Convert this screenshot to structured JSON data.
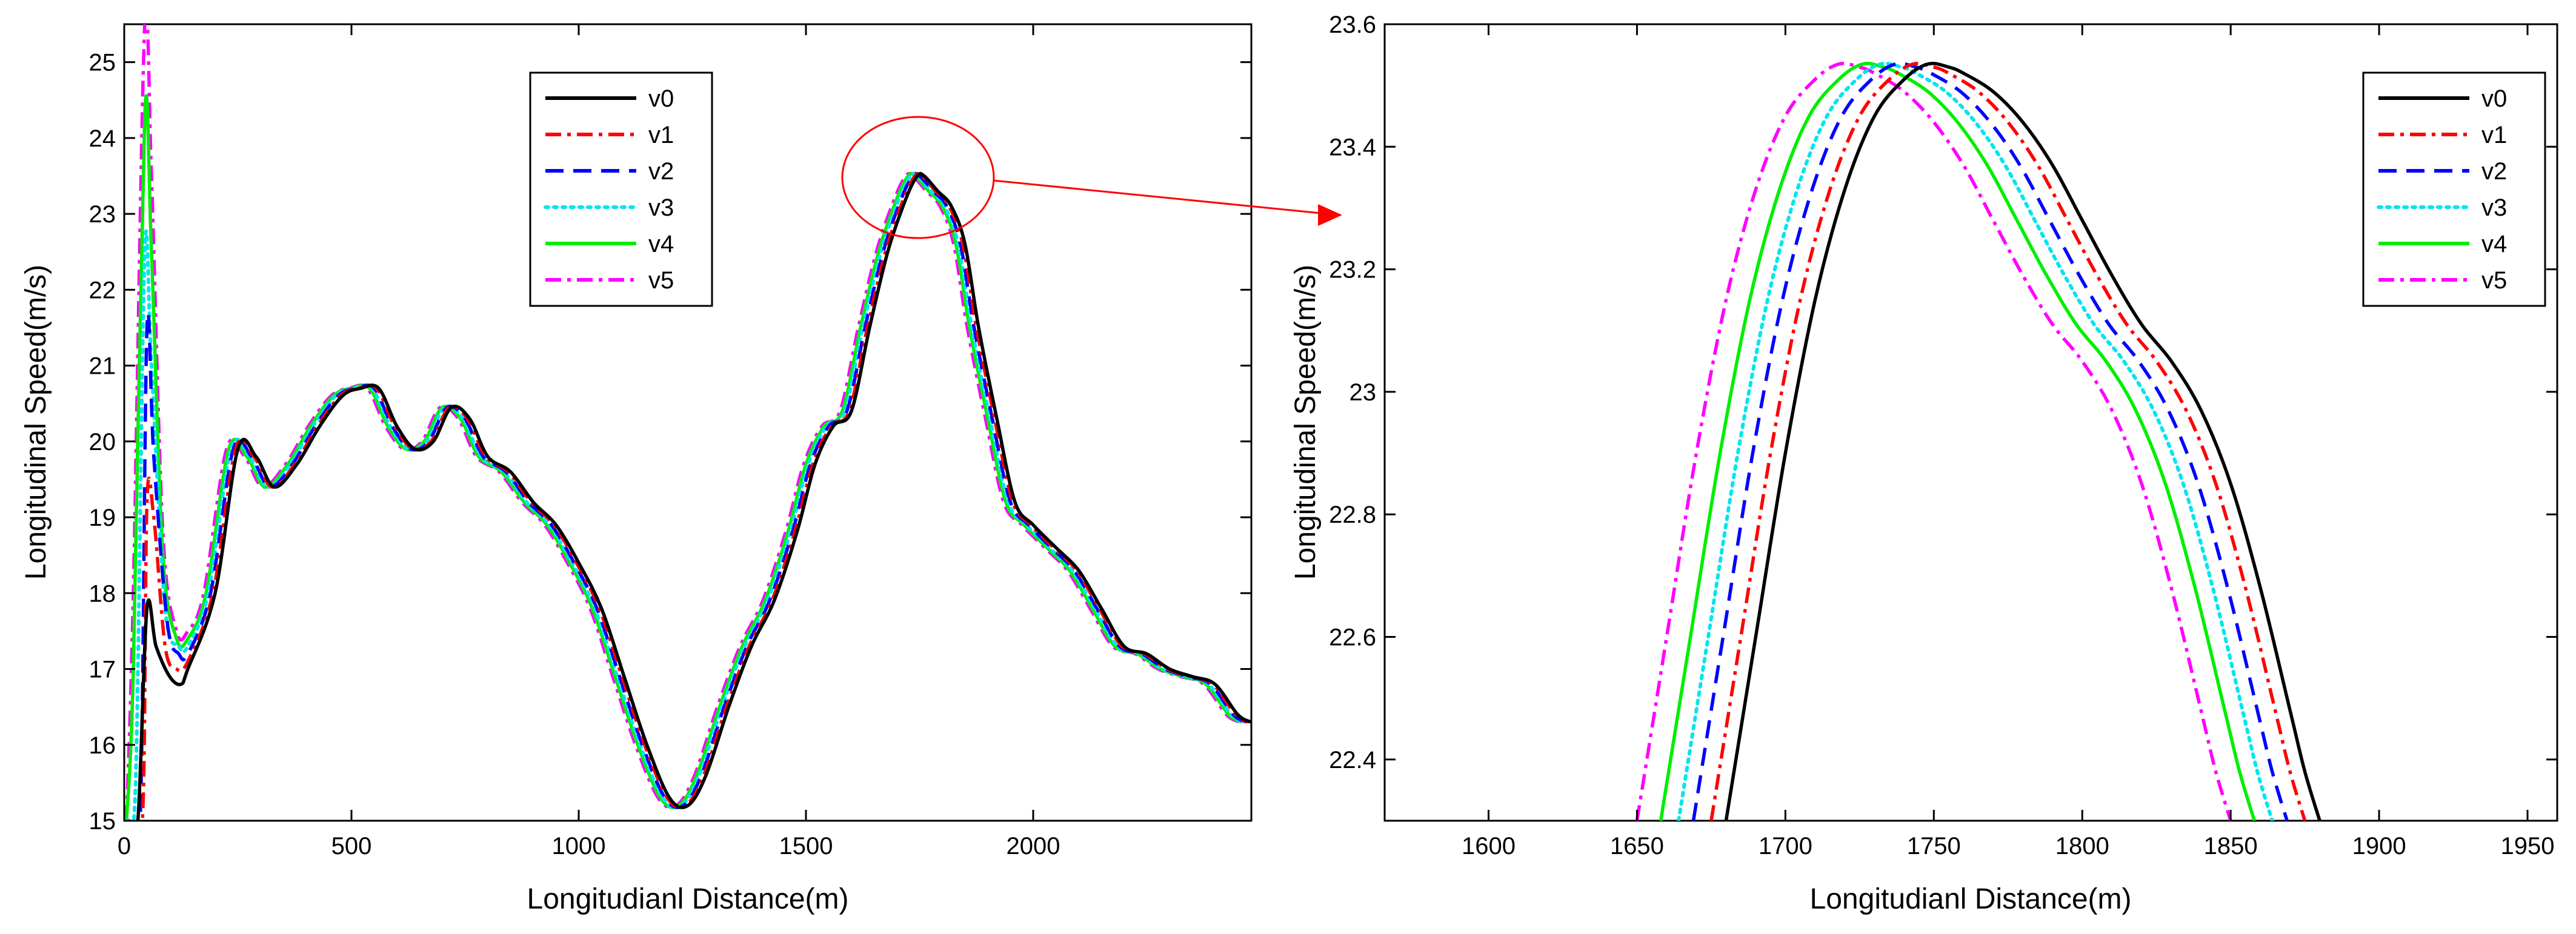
{
  "chart_data": [
    {
      "type": "line",
      "xlabel": "Longitudianl Distance(m)",
      "ylabel": "Longitudinal Speed(m/s)",
      "xlim": [
        0,
        2480
      ],
      "ylim": [
        15,
        25.5
      ],
      "xticks": [
        0,
        500,
        1000,
        1500,
        2000
      ],
      "yticks": [
        15,
        16,
        17,
        18,
        19,
        20,
        21,
        22,
        23,
        24,
        25
      ],
      "xtick_labels": [
        "0",
        "500",
        "1000",
        "1500",
        "2000"
      ],
      "ytick_labels": [
        "15",
        "16",
        "17",
        "18",
        "19",
        "20",
        "21",
        "22",
        "23",
        "24",
        "25"
      ],
      "legend": "top-center",
      "base_curve": {
        "x": [
          140,
          200,
          250,
          290,
          330,
          380,
          430,
          480,
          520,
          560,
          600,
          640,
          680,
          720,
          760,
          800,
          850,
          900,
          950,
          1000,
          1050,
          1100,
          1150,
          1200,
          1240,
          1280,
          1330,
          1380,
          1430,
          1480,
          1520,
          1560,
          1600,
          1640,
          1680,
          1720,
          1745,
          1760,
          1790,
          1820,
          1850,
          1880,
          1920,
          1960,
          2000,
          2050,
          2100,
          2150,
          2200,
          2250,
          2300,
          2350,
          2400,
          2450,
          2480
        ],
        "y": [
          17.0,
          18.0,
          19.9,
          19.8,
          19.4,
          19.7,
          20.2,
          20.6,
          20.7,
          20.7,
          20.2,
          19.9,
          20.0,
          20.45,
          20.3,
          19.8,
          19.6,
          19.2,
          18.9,
          18.4,
          17.8,
          16.9,
          16.0,
          15.3,
          15.2,
          15.6,
          16.5,
          17.3,
          17.9,
          18.8,
          19.7,
          20.2,
          20.4,
          21.5,
          22.5,
          23.2,
          23.5,
          23.5,
          23.3,
          23.1,
          22.6,
          21.5,
          20.3,
          19.2,
          18.9,
          18.6,
          18.3,
          17.8,
          17.3,
          17.2,
          17.0,
          16.9,
          16.8,
          16.4,
          16.3
        ]
      },
      "series": [
        {
          "name": "v0",
          "color": "#000000",
          "style": "solid",
          "shift": 0,
          "start": [
            [
              10,
              15.0
            ],
            [
              30,
              15.0
            ],
            [
              50,
              17.8
            ],
            [
              70,
              17.3
            ],
            [
              100,
              16.9
            ],
            [
              125,
              16.8
            ],
            [
              140,
              17.0
            ]
          ]
        },
        {
          "name": "v1",
          "color": "#ff0000",
          "style": "dashdot",
          "shift": -5,
          "start": [
            [
              10,
              15.0
            ],
            [
              40,
              15.0
            ],
            [
              50,
              19.2
            ],
            [
              65,
              19.0
            ],
            [
              90,
              17.3
            ],
            [
              115,
              17.0
            ],
            [
              140,
              17.1
            ]
          ]
        },
        {
          "name": "v2",
          "color": "#0000ff",
          "style": "dashed",
          "shift": -10,
          "start": [
            [
              10,
              15.0
            ],
            [
              35,
              15.0
            ],
            [
              50,
              21.5
            ],
            [
              65,
              19.8
            ],
            [
              95,
              17.6
            ],
            [
              120,
              17.2
            ],
            [
              140,
              17.2
            ]
          ]
        },
        {
          "name": "v3",
          "color": "#00e5ee",
          "style": "dotted",
          "shift": -15,
          "start": [
            [
              5,
              15.0
            ],
            [
              25,
              15.5
            ],
            [
              45,
              22.5
            ],
            [
              60,
              21.0
            ],
            [
              90,
              17.8
            ],
            [
              120,
              17.3
            ],
            [
              140,
              17.3
            ]
          ]
        },
        {
          "name": "v4",
          "color": "#00ee00",
          "style": "solid",
          "shift": -20,
          "start": [
            [
              5,
              15.0
            ],
            [
              20,
              17.0
            ],
            [
              45,
              24.3
            ],
            [
              60,
              22.5
            ],
            [
              85,
              18.5
            ],
            [
              115,
              17.4
            ],
            [
              140,
              17.4
            ]
          ]
        },
        {
          "name": "v5",
          "color": "#ff00ff",
          "style": "dashdot",
          "shift": -25,
          "start": [
            [
              5,
              15.0
            ],
            [
              20,
              18.0
            ],
            [
              45,
              25.5
            ],
            [
              60,
              23.5
            ],
            [
              85,
              18.8
            ],
            [
              115,
              17.5
            ],
            [
              140,
              17.5
            ]
          ]
        }
      ]
    },
    {
      "type": "line",
      "xlabel": "Longitudianl Distance(m)",
      "ylabel": "Longitudinal Speed(m/s)",
      "xlim": [
        1565,
        1960
      ],
      "ylim": [
        22.3,
        23.6
      ],
      "xticks": [
        1600,
        1650,
        1700,
        1750,
        1800,
        1850,
        1900,
        1950
      ],
      "yticks": [
        22.4,
        22.6,
        22.8,
        23.0,
        23.2,
        23.4,
        23.6
      ],
      "xtick_labels": [
        "1600",
        "1650",
        "1700",
        "1750",
        "1800",
        "1850",
        "1900",
        "1950"
      ],
      "ytick_labels": [
        "22.4",
        "22.6",
        "22.8",
        "23",
        "23.2",
        "23.4",
        "23.6"
      ],
      "legend": "top-right",
      "base_curve": {
        "x": [
          1680,
          1690,
          1700,
          1710,
          1720,
          1730,
          1740,
          1748,
          1755,
          1760,
          1770,
          1780,
          1790,
          1800,
          1810,
          1820,
          1830,
          1840,
          1850,
          1860,
          1870,
          1875,
          1880
        ],
        "y": [
          22.3,
          22.6,
          22.9,
          23.15,
          23.33,
          23.45,
          23.51,
          23.535,
          23.53,
          23.52,
          23.49,
          23.44,
          23.37,
          23.28,
          23.19,
          23.11,
          23.05,
          22.97,
          22.85,
          22.68,
          22.48,
          22.38,
          22.3
        ]
      },
      "series": [
        {
          "name": "v0",
          "color": "#000000",
          "style": "solid",
          "shift": 0
        },
        {
          "name": "v1",
          "color": "#ff0000",
          "style": "dashdot",
          "shift": -5
        },
        {
          "name": "v2",
          "color": "#0000ff",
          "style": "dashed",
          "shift": -11
        },
        {
          "name": "v3",
          "color": "#00e5ee",
          "style": "dotted",
          "shift": -16
        },
        {
          "name": "v4",
          "color": "#00ee00",
          "style": "solid",
          "shift": -22
        },
        {
          "name": "v5",
          "color": "#ff00ff",
          "style": "dashdot",
          "shift": -30
        }
      ]
    }
  ],
  "zoom_annotation": {
    "color": "#ff0000",
    "center_x": 1760,
    "center_y": 23.2
  }
}
